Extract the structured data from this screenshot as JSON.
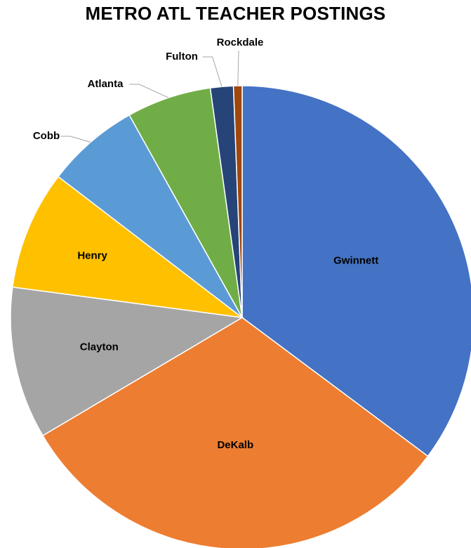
{
  "chart_data": {
    "type": "pie",
    "title": "METRO ATL TEACHER POSTINGS",
    "start": "top",
    "direction": "clockwise",
    "legend": "none",
    "slices": [
      {
        "label": "Gwinnett",
        "value": 35.2,
        "color": "#4472C4",
        "label_position": "inside"
      },
      {
        "label": "DeKalb",
        "value": 31.3,
        "color": "#ED7D31",
        "label_position": "inside"
      },
      {
        "label": "Clayton",
        "value": 10.6,
        "color": "#A5A5A5",
        "label_position": "inside"
      },
      {
        "label": "Henry",
        "value": 8.3,
        "color": "#FFC000",
        "label_position": "inside"
      },
      {
        "label": "Cobb",
        "value": 6.5,
        "color": "#5B9BD5",
        "label_position": "outside"
      },
      {
        "label": "Atlanta",
        "value": 5.9,
        "color": "#70AD47",
        "label_position": "outside"
      },
      {
        "label": "Fulton",
        "value": 1.6,
        "color": "#264478",
        "label_position": "outside"
      },
      {
        "label": "Rockdale",
        "value": 0.6,
        "color": "#9E480E",
        "label_position": "outside"
      }
    ]
  }
}
